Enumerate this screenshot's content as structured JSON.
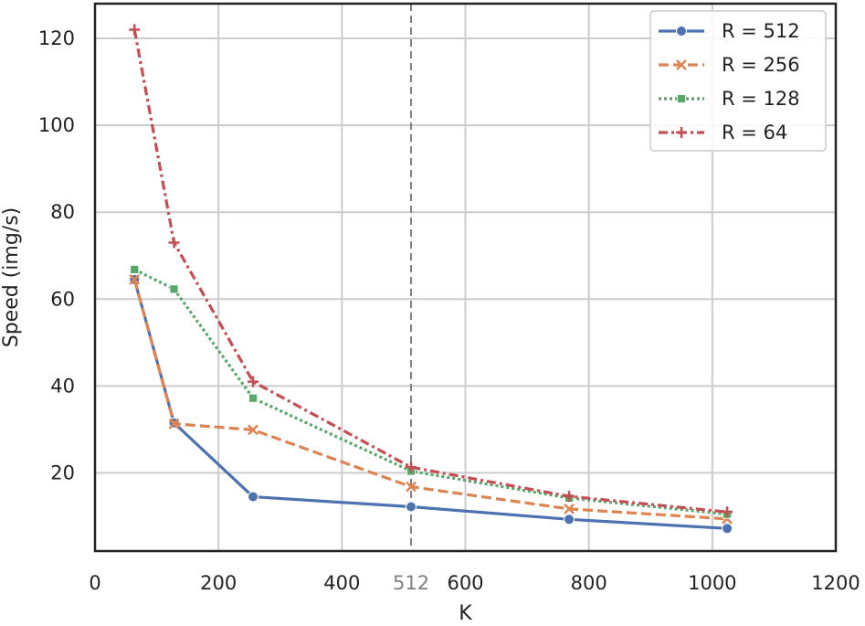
{
  "chart_data": {
    "type": "line",
    "xlabel": "K",
    "ylabel": "Speed (img/s)",
    "xlim": [
      0,
      1200
    ],
    "ylim": [
      2,
      128
    ],
    "grid": true,
    "x_ticks": [
      0,
      200,
      400,
      600,
      800,
      1000,
      1200
    ],
    "y_ticks": [
      20,
      40,
      60,
      80,
      100,
      120
    ],
    "reference_line": {
      "x": 512,
      "label": "512",
      "style": "dashed",
      "color": "#808080"
    },
    "legend_position": "top-right",
    "x": [
      64,
      128,
      256,
      512,
      768,
      1024
    ],
    "series": [
      {
        "name": "R = 512",
        "values": [
          64.5,
          31.5,
          14.5,
          12.2,
          9.3,
          7.2
        ],
        "color": "#4c72b0",
        "marker": "circle",
        "dash": "solid"
      },
      {
        "name": "R = 256",
        "values": [
          64.5,
          31.3,
          29.9,
          16.8,
          11.7,
          9.4
        ],
        "color": "#dd8452",
        "marker": "x",
        "dash": "dashed"
      },
      {
        "name": "R = 128",
        "values": [
          66.8,
          62.3,
          37.2,
          20.4,
          14.2,
          10.5
        ],
        "color": "#55a868",
        "marker": "square",
        "dash": "dotted"
      },
      {
        "name": "R = 64",
        "values": [
          122.0,
          73.0,
          41.0,
          21.3,
          14.6,
          11.0
        ],
        "color": "#c44e52",
        "marker": "plus",
        "dash": "dashdot"
      }
    ]
  }
}
